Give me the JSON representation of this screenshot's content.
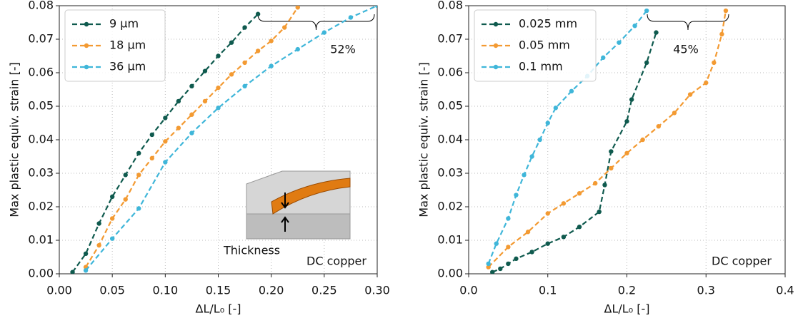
{
  "chart_data": [
    {
      "type": "line",
      "xlabel": "ΔL/L₀ [-]",
      "ylabel": "Max plastic equiv. strain [-]",
      "xlim": [
        0,
        0.3
      ],
      "ylim": [
        0,
        0.08
      ],
      "xticks": [
        {
          "value": 0,
          "label": "0.00"
        },
        {
          "value": 0.05,
          "label": "0.05"
        },
        {
          "value": 0.1,
          "label": "0.10"
        },
        {
          "value": 0.15,
          "label": "0.15"
        },
        {
          "value": 0.2,
          "label": "0.20"
        },
        {
          "value": 0.25,
          "label": "0.25"
        },
        {
          "value": 0.3,
          "label": "0.30"
        }
      ],
      "yticks": [
        {
          "value": 0,
          "label": "0.00"
        },
        0.01,
        0.02,
        0.03,
        0.04,
        0.05,
        0.06,
        0.07,
        0.08
      ],
      "grid": true,
      "legend": "upper left",
      "annotations": [
        "52%",
        "DC copper",
        "Thickness"
      ],
      "series": [
        {
          "name": "9 μm",
          "color": "#0f5a4e",
          "x": [
            0.0125,
            0.025,
            0.0375,
            0.05,
            0.0625,
            0.075,
            0.0875,
            0.1,
            0.1125,
            0.125,
            0.1375,
            0.15,
            0.1625,
            0.175,
            0.1875
          ],
          "values": [
            0.0005,
            0.006,
            0.015,
            0.023,
            0.0295,
            0.036,
            0.0415,
            0.0465,
            0.0515,
            0.056,
            0.0605,
            0.065,
            0.069,
            0.0735,
            0.0775
          ]
        },
        {
          "name": "18 μm",
          "color": "#f39a32",
          "x": [
            0.025,
            0.0375,
            0.05,
            0.0625,
            0.075,
            0.0875,
            0.1,
            0.1125,
            0.125,
            0.1375,
            0.15,
            0.1625,
            0.175,
            0.1875,
            0.2,
            0.2125,
            0.225
          ],
          "values": [
            0.002,
            0.0085,
            0.0165,
            0.0222,
            0.0295,
            0.0345,
            0.0395,
            0.0435,
            0.0475,
            0.0515,
            0.0555,
            0.0595,
            0.063,
            0.0665,
            0.0695,
            0.0735,
            0.0795
          ]
        },
        {
          "name": "36 μm",
          "color": "#3fb6d9",
          "x": [
            0.025,
            0.05,
            0.075,
            0.1,
            0.125,
            0.15,
            0.175,
            0.2,
            0.225,
            0.25,
            0.275,
            0.3
          ],
          "values": [
            0.001,
            0.0105,
            0.0195,
            0.0333,
            0.042,
            0.0495,
            0.056,
            0.062,
            0.067,
            0.072,
            0.0765,
            0.08
          ]
        }
      ]
    },
    {
      "type": "line",
      "xlabel": "ΔL/L₀ [-]",
      "ylabel": "Max plastic equiv. strain [-]",
      "xlim": [
        0,
        0.4
      ],
      "ylim": [
        0,
        0.08
      ],
      "xticks": [
        {
          "value": 0,
          "label": "0.0"
        },
        0.1,
        0.2,
        0.3,
        0.4
      ],
      "yticks": [
        {
          "value": 0,
          "label": "0.00"
        },
        0.01,
        0.02,
        0.03,
        0.04,
        0.05,
        0.06,
        0.07,
        0.08
      ],
      "grid": true,
      "legend": "upper left",
      "annotations": [
        "45%",
        "DC copper"
      ],
      "series": [
        {
          "name": "0.025 mm",
          "color": "#0f5a4e",
          "x": [
            0.03,
            0.04,
            0.05,
            0.06,
            0.08,
            0.1,
            0.12,
            0.14,
            0.165,
            0.172,
            0.18,
            0.2,
            0.206,
            0.225,
            0.237
          ],
          "values": [
            0.0005,
            0.0015,
            0.003,
            0.0045,
            0.0065,
            0.009,
            0.011,
            0.014,
            0.0185,
            0.0265,
            0.0365,
            0.0455,
            0.052,
            0.063,
            0.072
          ]
        },
        {
          "name": "0.05 mm",
          "color": "#f39a32",
          "x": [
            0.025,
            0.05,
            0.075,
            0.1,
            0.12,
            0.14,
            0.16,
            0.18,
            0.2,
            0.22,
            0.24,
            0.26,
            0.28,
            0.3,
            0.31,
            0.32,
            0.325
          ],
          "values": [
            0.002,
            0.008,
            0.0125,
            0.018,
            0.021,
            0.024,
            0.027,
            0.0315,
            0.036,
            0.04,
            0.044,
            0.048,
            0.0535,
            0.057,
            0.063,
            0.0715,
            0.0785
          ]
        },
        {
          "name": "0.1 mm",
          "color": "#3fb6d9",
          "x": [
            0.025,
            0.035,
            0.05,
            0.06,
            0.07,
            0.08,
            0.09,
            0.1,
            0.11,
            0.13,
            0.15,
            0.17,
            0.19,
            0.21,
            0.225
          ],
          "values": [
            0.003,
            0.009,
            0.0165,
            0.0235,
            0.0295,
            0.035,
            0.04,
            0.045,
            0.0495,
            0.0545,
            0.059,
            0.0645,
            0.069,
            0.074,
            0.0785
          ]
        }
      ]
    }
  ]
}
